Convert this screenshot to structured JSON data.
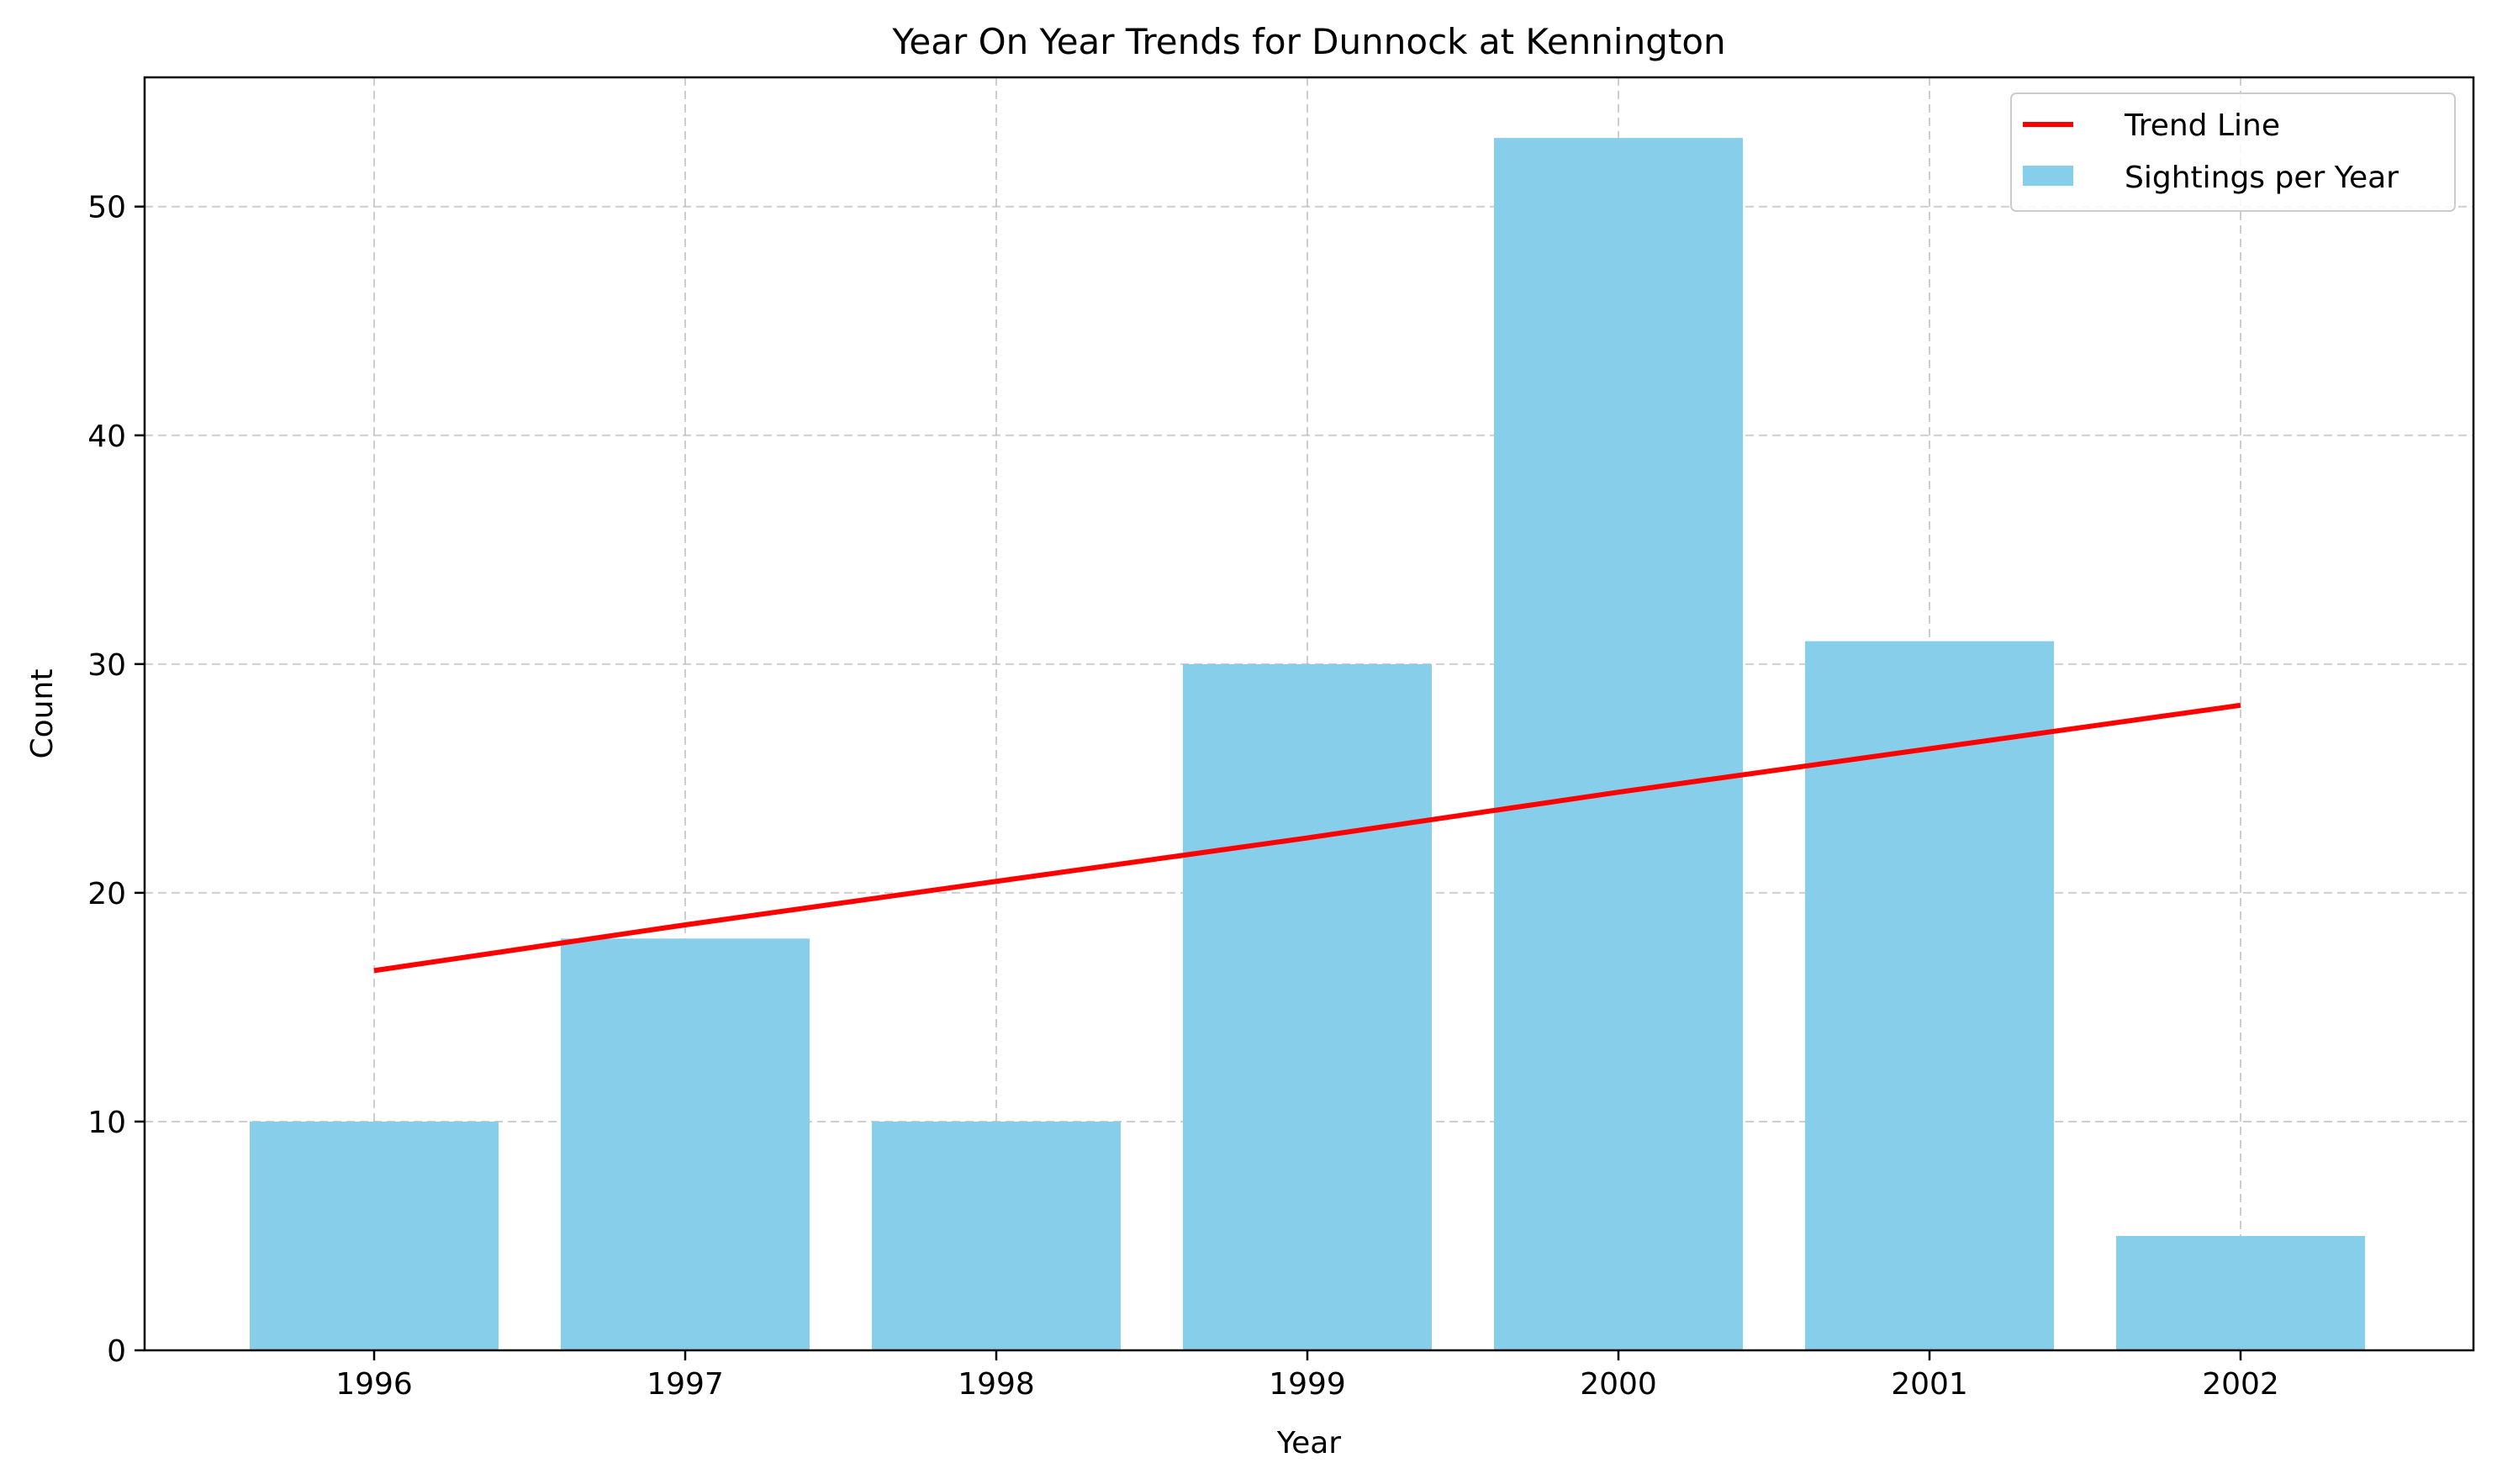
{
  "chart_data": {
    "type": "bar",
    "title": "Year On Year Trends for Dunnock at Kennington",
    "xlabel": "Year",
    "ylabel": "Count",
    "categories": [
      "1996",
      "1997",
      "1998",
      "1999",
      "2000",
      "2001",
      "2002"
    ],
    "series": [
      {
        "name": "Sightings per Year",
        "kind": "bar",
        "color": "#87CEEB",
        "values": [
          10,
          18,
          10,
          30,
          53,
          31,
          5
        ]
      },
      {
        "name": "Trend Line",
        "kind": "line",
        "color": "#FF0000",
        "values": [
          16.6,
          18.6,
          20.5,
          22.4,
          24.4,
          26.3,
          28.2
        ]
      }
    ],
    "ylim": [
      0,
      55.65
    ],
    "yticks": [
      0,
      10,
      20,
      30,
      40,
      50
    ],
    "grid": true,
    "legend_position": "top-right"
  }
}
